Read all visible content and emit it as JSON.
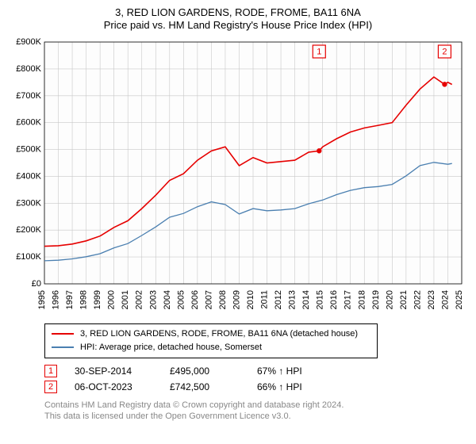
{
  "header": {
    "title": "3, RED LION GARDENS, RODE, FROME, BA11 6NA",
    "subtitle": "Price paid vs. HM Land Registry's House Price Index (HPI)"
  },
  "chart": {
    "type": "line",
    "background_color": "#fdfdfd",
    "grid_color": "#c8c8c8",
    "axis_color": "#000000",
    "x": {
      "min": 1995,
      "max": 2025,
      "step": 1,
      "labels": [
        "1995",
        "1996",
        "1997",
        "1998",
        "1999",
        "2000",
        "2001",
        "2002",
        "2003",
        "2004",
        "2005",
        "2006",
        "2007",
        "2008",
        "2009",
        "2010",
        "2011",
        "2012",
        "2013",
        "2014",
        "2015",
        "2016",
        "2017",
        "2018",
        "2019",
        "2020",
        "2021",
        "2022",
        "2023",
        "2024",
        "2025"
      ]
    },
    "y": {
      "min": 0,
      "max": 900000,
      "step": 100000,
      "labels": [
        "£0",
        "£100K",
        "£200K",
        "£300K",
        "£400K",
        "£500K",
        "£600K",
        "£700K",
        "£800K",
        "£900K"
      ]
    },
    "series": [
      {
        "name": "property",
        "color": "#e60000",
        "width": 1.6,
        "points": [
          [
            1995,
            140000
          ],
          [
            1996,
            142000
          ],
          [
            1997,
            148000
          ],
          [
            1998,
            160000
          ],
          [
            1999,
            178000
          ],
          [
            2000,
            210000
          ],
          [
            2001,
            235000
          ],
          [
            2002,
            280000
          ],
          [
            2003,
            330000
          ],
          [
            2004,
            385000
          ],
          [
            2005,
            410000
          ],
          [
            2006,
            460000
          ],
          [
            2007,
            495000
          ],
          [
            2008,
            510000
          ],
          [
            2009,
            440000
          ],
          [
            2010,
            470000
          ],
          [
            2011,
            450000
          ],
          [
            2012,
            455000
          ],
          [
            2013,
            460000
          ],
          [
            2014,
            490000
          ],
          [
            2014.75,
            495000
          ],
          [
            2015,
            510000
          ],
          [
            2016,
            540000
          ],
          [
            2017,
            565000
          ],
          [
            2018,
            580000
          ],
          [
            2019,
            590000
          ],
          [
            2020,
            600000
          ],
          [
            2021,
            665000
          ],
          [
            2022,
            725000
          ],
          [
            2023,
            770000
          ],
          [
            2023.77,
            742500
          ],
          [
            2024,
            750000
          ],
          [
            2024.3,
            742000
          ]
        ]
      },
      {
        "name": "hpi",
        "color": "#4a7fb0",
        "width": 1.3,
        "points": [
          [
            1995,
            86000
          ],
          [
            1996,
            88000
          ],
          [
            1997,
            93000
          ],
          [
            1998,
            101000
          ],
          [
            1999,
            112000
          ],
          [
            2000,
            134000
          ],
          [
            2001,
            150000
          ],
          [
            2002,
            180000
          ],
          [
            2003,
            212000
          ],
          [
            2004,
            248000
          ],
          [
            2005,
            262000
          ],
          [
            2006,
            287000
          ],
          [
            2007,
            305000
          ],
          [
            2008,
            295000
          ],
          [
            2009,
            260000
          ],
          [
            2010,
            280000
          ],
          [
            2011,
            272000
          ],
          [
            2012,
            275000
          ],
          [
            2013,
            280000
          ],
          [
            2014,
            298000
          ],
          [
            2015,
            312000
          ],
          [
            2016,
            332000
          ],
          [
            2017,
            348000
          ],
          [
            2018,
            358000
          ],
          [
            2019,
            362000
          ],
          [
            2020,
            370000
          ],
          [
            2021,
            402000
          ],
          [
            2022,
            440000
          ],
          [
            2023,
            452000
          ],
          [
            2024,
            445000
          ],
          [
            2024.3,
            448000
          ]
        ]
      }
    ],
    "sale_markers": [
      {
        "label": "1",
        "x": 2014.75,
        "y": 495000
      },
      {
        "label": "2",
        "x": 2023.77,
        "y": 742500
      }
    ]
  },
  "legend": {
    "items": [
      {
        "color": "#e60000",
        "label": "3, RED LION GARDENS, RODE, FROME, BA11 6NA (detached house)"
      },
      {
        "color": "#4a7fb0",
        "label": "HPI: Average price, detached house, Somerset"
      }
    ]
  },
  "sales": [
    {
      "marker": "1",
      "date": "30-SEP-2014",
      "price": "£495,000",
      "delta": "67% ↑ HPI"
    },
    {
      "marker": "2",
      "date": "06-OCT-2023",
      "price": "£742,500",
      "delta": "66% ↑ HPI"
    }
  ],
  "footnote": {
    "line1": "Contains HM Land Registry data © Crown copyright and database right 2024.",
    "line2": "This data is licensed under the Open Government Licence v3.0."
  }
}
